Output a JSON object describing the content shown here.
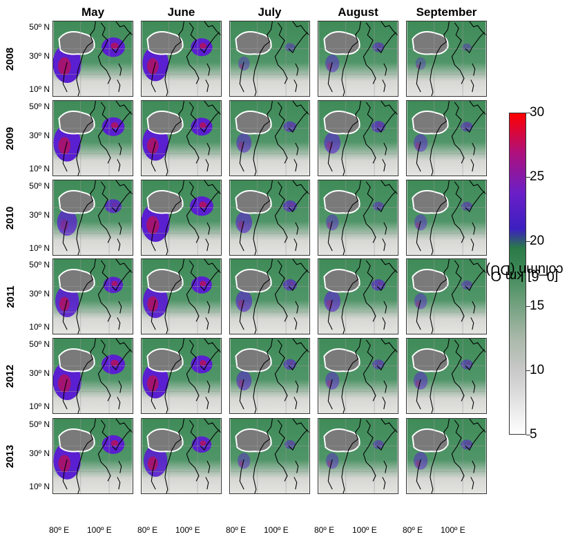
{
  "months": [
    "May",
    "June",
    "July",
    "August",
    "September"
  ],
  "years": [
    "2008",
    "2009",
    "2010",
    "2011",
    "2012",
    "2013"
  ],
  "lat_labels": [
    "50º N",
    "30º N",
    "10º N"
  ],
  "lon_labels": [
    "80º E",
    "100º E"
  ],
  "colorbar": {
    "label_prefix": "[0–6] km O",
    "label_sub": "3",
    "label_suffix": " column (DU)",
    "ticks": [
      "30",
      "25",
      "20",
      "15",
      "10",
      "5"
    ],
    "min": 5,
    "max": 30,
    "colors": [
      "#ffffff",
      "#c8c8c8",
      "#3f8b58",
      "#3c1fc0",
      "#b0107a",
      "#ff0000"
    ]
  },
  "panel_colors": {
    "land_mask": "#7a7a7a",
    "ocean_low": "#d6d6d3",
    "green": "#3f8b58",
    "purple": "#5a1fd0",
    "red": "#b5105a",
    "coast": "#000000"
  },
  "intensity": [
    [
      0.95,
      0.85,
      0.25,
      0.35,
      0.2
    ],
    [
      0.9,
      0.85,
      0.4,
      0.45,
      0.35
    ],
    [
      0.6,
      0.95,
      0.45,
      0.3,
      0.3
    ],
    [
      0.75,
      0.8,
      0.45,
      0.45,
      0.3
    ],
    [
      0.95,
      0.85,
      0.4,
      0.35,
      0.35
    ],
    [
      0.9,
      0.75,
      0.3,
      0.3,
      0.35
    ]
  ]
}
